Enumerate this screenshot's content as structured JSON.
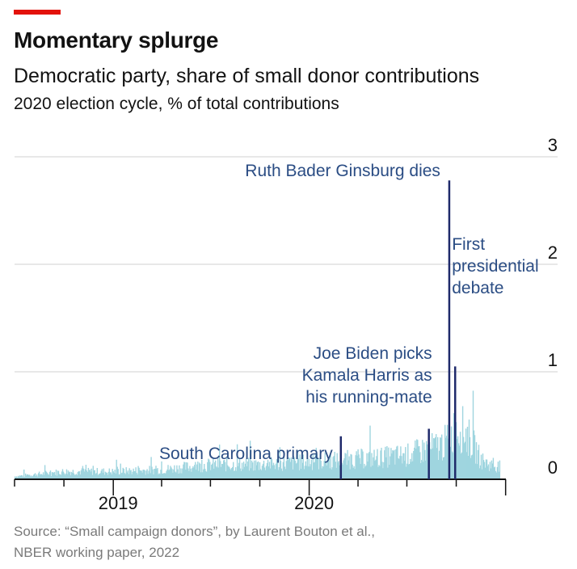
{
  "header": {
    "title": "Momentary splurge",
    "subtitle": "Democratic party, share of small donor contributions",
    "note": "2020 election cycle, % of total contributions"
  },
  "footer": {
    "source_line1": "Source: “Small campaign donors”, by Laurent Bouton et al.,",
    "source_line2": "NBER working paper, 2022"
  },
  "colors": {
    "accent": "#e3120b",
    "series": "#9fd5df",
    "annotation_line": "#1f2a6b",
    "annotation_text": "#2b4d84",
    "grid": "#d0d0d0",
    "axis": "#121212"
  },
  "chart_data": {
    "type": "bar",
    "title": "Momentary splurge",
    "subtitle": "Democratic party, share of small donor contributions",
    "ylabel": "% of total contributions",
    "ylim": [
      0,
      3
    ],
    "yticks": [
      0,
      1,
      2,
      3
    ],
    "xlim": [
      "2018-07-01",
      "2020-12-31"
    ],
    "x_tick_labels": [
      "2019",
      "2020"
    ],
    "grid": true,
    "series": [
      {
        "values_description": "daily share, mostly 0.05-0.2% in 2019 rising to 0.2-0.7% around autumn 2020",
        "samples": [
          {
            "x": "2018-07-01",
            "y": 0.03
          },
          {
            "x": "2018-10-01",
            "y": 0.08
          },
          {
            "x": "2019-01-01",
            "y": 0.08
          },
          {
            "x": "2019-04-01",
            "y": 0.1
          },
          {
            "x": "2019-07-01",
            "y": 0.15
          },
          {
            "x": "2019-10-01",
            "y": 0.15
          },
          {
            "x": "2020-01-01",
            "y": 0.18
          },
          {
            "x": "2020-03-01",
            "y": 0.2
          },
          {
            "x": "2020-05-01",
            "y": 0.22
          },
          {
            "x": "2020-07-01",
            "y": 0.25
          },
          {
            "x": "2020-08-01",
            "y": 0.3
          },
          {
            "x": "2020-09-01",
            "y": 0.35
          },
          {
            "x": "2020-09-15",
            "y": 0.4
          },
          {
            "x": "2020-10-01",
            "y": 0.55
          },
          {
            "x": "2020-10-15",
            "y": 0.5
          },
          {
            "x": "2020-11-01",
            "y": 0.35
          },
          {
            "x": "2020-11-15",
            "y": 0.2
          },
          {
            "x": "2020-12-01",
            "y": 0.15
          },
          {
            "x": "2020-12-31",
            "y": 0.12
          }
        ]
      }
    ],
    "annotations": [
      {
        "label": "South Carolina primary",
        "date": "2020-02-29",
        "value": 0.4
      },
      {
        "label_lines": [
          "Joe Biden picks",
          "Kamala Harris as",
          "his running-mate"
        ],
        "date": "2020-08-11",
        "value": 0.47
      },
      {
        "label": "Ruth Bader Ginsburg dies",
        "date": "2020-09-18",
        "value": 2.78
      },
      {
        "label_lines": [
          "First",
          "presidential",
          "debate"
        ],
        "date": "2020-09-29",
        "value": 1.05
      }
    ]
  }
}
